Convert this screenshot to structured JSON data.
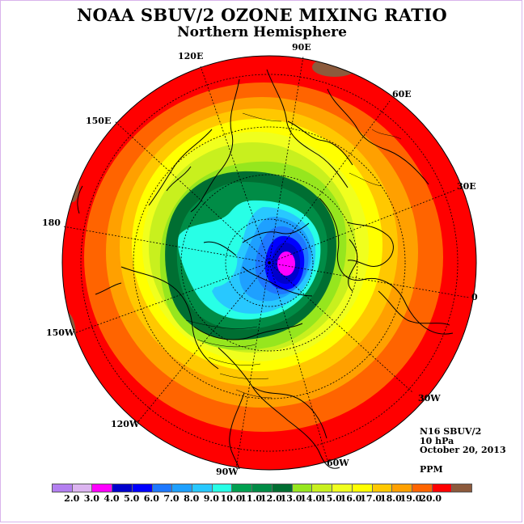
{
  "title": "NOAA SBUV/2 OZONE MIXING RATIO",
  "subtitle": "Northern Hemisphere",
  "info": {
    "instrument": "N16 SBUV/2",
    "level": "10 hPa",
    "date": "October 20, 2013",
    "units": "PPM"
  },
  "longitude_labels": {
    "lon_90e": "90E",
    "lon_120e": "120E",
    "lon_60e": "60E",
    "lon_150e": "150E",
    "lon_30e": "30E",
    "lon_180": "180",
    "lon_0": "0",
    "lon_150w": "150W",
    "lon_30w": "30W",
    "lon_120w": "120W",
    "lon_60w": "60W",
    "lon_90w": "90W"
  },
  "colorbar": {
    "colors": [
      "#b37ff0",
      "#dcb4f0",
      "#ff00ff",
      "#0000cc",
      "#0000ff",
      "#1e78ff",
      "#1ea0ff",
      "#28c8ff",
      "#28ffe6",
      "#00a050",
      "#008c46",
      "#006e32",
      "#96e61e",
      "#c8f01e",
      "#f0ff1e",
      "#ffff00",
      "#ffc800",
      "#ffa000",
      "#ff6400",
      "#ff0000",
      "#8c5a3c"
    ],
    "ticks": [
      "2.0",
      "3.0",
      "4.0",
      "5.0",
      "6.0",
      "7.0",
      "8.0",
      "9.0",
      "10.0",
      "11.0",
      "12.0",
      "13.0",
      "14.0",
      "15.0",
      "16.0",
      "17.0",
      "18.0",
      "19.0",
      "20.0"
    ]
  },
  "map_data": {
    "projection": "north polar stereographic",
    "field": "ozone mixing ratio (ppm) at 10 hPa",
    "polar_minimum_ppm": 4.0,
    "equatorial_maximum_ppm": 19.0
  }
}
